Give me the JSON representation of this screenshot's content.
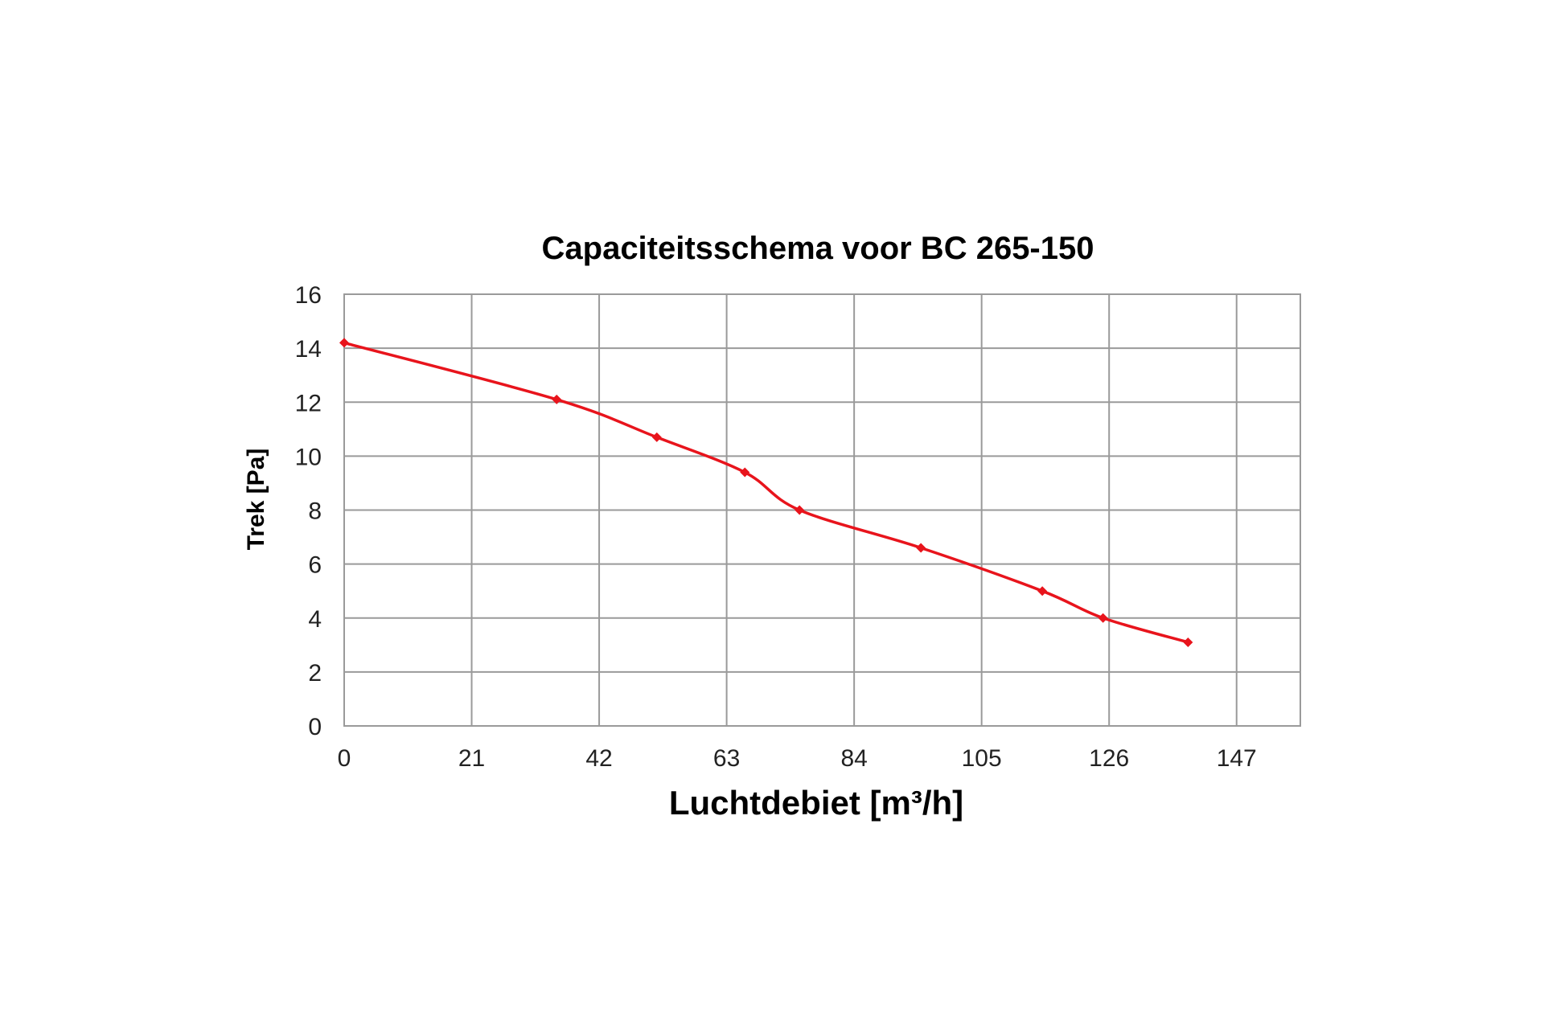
{
  "chart_data": {
    "type": "line",
    "title": "Capaciteitsschema voor BC 265-150",
    "xlabel": "Luchtdebiet [m³/h]",
    "ylabel": "Trek [Pa]",
    "xlim": [
      0,
      157.5
    ],
    "ylim": [
      0,
      16
    ],
    "x_ticks": [
      0,
      21,
      42,
      63,
      84,
      105,
      126,
      147
    ],
    "y_ticks": [
      0,
      2,
      4,
      6,
      8,
      10,
      12,
      14,
      16
    ],
    "grid": true,
    "legend": "none",
    "series": [
      {
        "color": "#e8141c",
        "points": [
          {
            "x": 0,
            "y": 14.2
          },
          {
            "x": 35,
            "y": 12.1
          },
          {
            "x": 51.5,
            "y": 10.7
          },
          {
            "x": 66,
            "y": 9.4
          },
          {
            "x": 75,
            "y": 8.0
          },
          {
            "x": 95,
            "y": 6.6
          },
          {
            "x": 115,
            "y": 5.0
          },
          {
            "x": 125,
            "y": 4.0
          },
          {
            "x": 139,
            "y": 3.1
          }
        ]
      }
    ]
  }
}
